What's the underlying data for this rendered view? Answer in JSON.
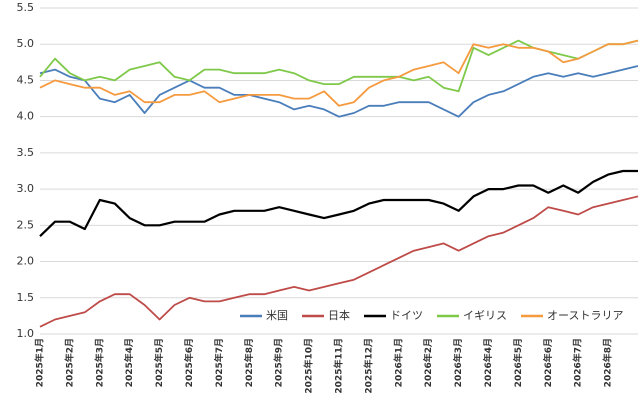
{
  "chart_data": {
    "type": "line",
    "categories": [
      "2025年1月",
      null,
      "2025年2月",
      null,
      "2025年3月",
      null,
      "2025年4月",
      null,
      "2025年5月",
      null,
      "2025年6月",
      null,
      "2025年7月",
      null,
      "2025年8月",
      null,
      "2025年9月",
      null,
      "2025年10月",
      null,
      "2025年11月",
      null,
      "2025年12月",
      null,
      "2026年1月",
      null,
      "2026年2月",
      null,
      "2026年3月",
      null,
      "2026年4月",
      null,
      "2026年5月",
      null,
      "2026年6月",
      null,
      "2026年7月",
      null,
      "2026年8月",
      null,
      null
    ],
    "series": [
      {
        "name": "米国",
        "color": "#4a7ebb",
        "values": [
          4.6,
          4.65,
          4.55,
          4.5,
          4.25,
          4.2,
          4.3,
          4.05,
          4.3,
          4.4,
          4.5,
          4.4,
          4.4,
          4.3,
          4.3,
          4.25,
          4.2,
          4.1,
          4.15,
          4.1,
          4.0,
          4.05,
          4.15,
          4.15,
          4.2,
          4.2,
          4.2,
          4.1,
          4.0,
          4.2,
          4.3,
          4.35,
          4.45,
          4.55,
          4.6,
          4.55,
          4.6,
          4.55,
          4.6,
          4.65,
          4.7
        ]
      },
      {
        "name": "日本",
        "color": "#be4b48",
        "values": [
          1.1,
          1.2,
          1.25,
          1.3,
          1.45,
          1.55,
          1.55,
          1.4,
          1.2,
          1.4,
          1.5,
          1.45,
          1.45,
          1.5,
          1.55,
          1.55,
          1.6,
          1.65,
          1.6,
          1.65,
          1.7,
          1.75,
          1.85,
          1.95,
          2.05,
          2.15,
          2.2,
          2.25,
          2.15,
          2.25,
          2.35,
          2.4,
          2.5,
          2.6,
          2.75,
          2.7,
          2.65,
          2.75,
          2.8,
          2.85,
          2.9
        ]
      },
      {
        "name": "ドイツ",
        "color": "#000000",
        "values": [
          2.35,
          2.55,
          2.55,
          2.45,
          2.85,
          2.8,
          2.6,
          2.5,
          2.5,
          2.55,
          2.55,
          2.55,
          2.65,
          2.7,
          2.7,
          2.7,
          2.75,
          2.7,
          2.65,
          2.6,
          2.65,
          2.7,
          2.8,
          2.85,
          2.85,
          2.85,
          2.85,
          2.8,
          2.7,
          2.9,
          3.0,
          3.0,
          3.05,
          3.05,
          2.95,
          3.05,
          2.95,
          3.1,
          3.2,
          3.25,
          3.25
        ]
      },
      {
        "name": "イギリス",
        "color": "#7fc94a",
        "values": [
          4.55,
          4.8,
          4.6,
          4.5,
          4.55,
          4.5,
          4.65,
          4.7,
          4.75,
          4.55,
          4.5,
          4.65,
          4.65,
          4.6,
          4.6,
          4.6,
          4.65,
          4.6,
          4.5,
          4.45,
          4.45,
          4.55,
          4.55,
          4.55,
          4.55,
          4.5,
          4.55,
          4.4,
          4.35,
          4.95,
          4.85,
          4.95,
          5.05,
          4.95,
          4.9,
          4.85,
          4.8,
          4.9,
          5.0,
          5.0,
          5.05
        ]
      },
      {
        "name": "オーストラリア",
        "color": "#f59a3f",
        "values": [
          4.4,
          4.5,
          4.45,
          4.4,
          4.4,
          4.3,
          4.35,
          4.2,
          4.2,
          4.3,
          4.3,
          4.35,
          4.2,
          4.25,
          4.3,
          4.3,
          4.3,
          4.25,
          4.25,
          4.35,
          4.15,
          4.2,
          4.4,
          4.5,
          4.55,
          4.65,
          4.7,
          4.75,
          4.6,
          5.0,
          4.95,
          5.0,
          4.95,
          4.95,
          4.9,
          4.75,
          4.8,
          4.9,
          5.0,
          5.0,
          5.05
        ]
      }
    ],
    "ylim": [
      1,
      5.5
    ],
    "yticks": [
      {
        "value": 1,
        "label": "1.0"
      },
      1.5,
      {
        "value": 2,
        "label": "2.0"
      },
      2.5,
      {
        "value": 3,
        "label": "3.0"
      },
      3.5,
      {
        "value": 4,
        "label": "4.0"
      },
      4.5,
      {
        "value": 5,
        "label": "5.0"
      },
      5.5
    ],
    "grid": true,
    "legend": "lower right"
  }
}
